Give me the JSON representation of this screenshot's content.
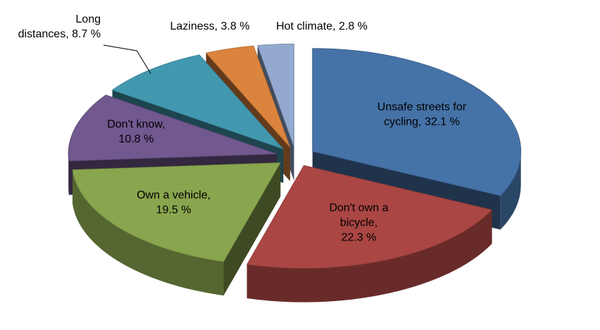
{
  "chart_data": {
    "type": "pie",
    "style": "exploded-3d",
    "title": "",
    "slices": [
      {
        "label": "Unsafe streets for cycling",
        "value": 32.1,
        "display": "Unsafe streets for cycling, 32.1 %",
        "color": "#4572A7"
      },
      {
        "label": "Don't own a bicycle",
        "value": 22.3,
        "display": "Don't own a bicycle, 22.3 %",
        "color": "#AA4643"
      },
      {
        "label": "Own a vehicle",
        "value": 19.5,
        "display": "Own a vehicle, 19.5 %",
        "color": "#89A54E"
      },
      {
        "label": "Don't know",
        "value": 10.8,
        "display": "Don't know, 10.8 %",
        "color": "#71588F"
      },
      {
        "label": "Long distances",
        "value": 8.7,
        "display": "Long distances, 8.7 %",
        "color": "#4198AF"
      },
      {
        "label": "Laziness",
        "value": 3.8,
        "display": "Laziness, 3.8 %",
        "color": "#DB843D"
      },
      {
        "label": "Hot climate",
        "value": 2.8,
        "display": "Hot climate, 2.8 %",
        "color": "#93A9CF"
      }
    ]
  }
}
